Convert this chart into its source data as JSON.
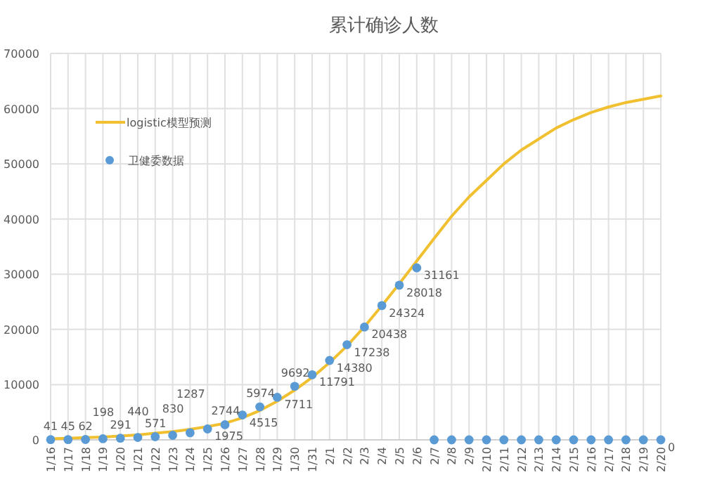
{
  "chart_data": {
    "type": "line",
    "title": "累计确诊人数",
    "categories": [
      "1/16",
      "1/17",
      "1/18",
      "1/19",
      "1/20",
      "1/21",
      "1/22",
      "1/23",
      "1/24",
      "1/25",
      "1/26",
      "1/27",
      "1/28",
      "1/29",
      "1/30",
      "1/31",
      "2/1",
      "2/2",
      "2/3",
      "2/4",
      "2/5",
      "2/6",
      "2/7",
      "2/8",
      "2/9",
      "2/10",
      "2/11",
      "2/12",
      "2/13",
      "2/14",
      "2/15",
      "2/16",
      "2/17",
      "2/18",
      "2/19",
      "2/20"
    ],
    "series": [
      {
        "name": "logistic模型预测",
        "color": "#f0c030",
        "marker": "none",
        "values": [
          200,
          300,
          400,
          500,
          700,
          900,
          1200,
          1500,
          1900,
          2400,
          3000,
          4000,
          5300,
          7000,
          9000,
          11300,
          14000,
          17000,
          20500,
          24300,
          28300,
          32400,
          36500,
          40500,
          44000,
          47000,
          50000,
          52500,
          54500,
          56500,
          58000,
          59300,
          60300,
          61100,
          61700,
          62300
        ]
      },
      {
        "name": "卫健委数据",
        "type": "scatter",
        "color": "#5b9bd5",
        "marker": "circle",
        "values": [
          41,
          45,
          62,
          198,
          291,
          440,
          571,
          830,
          1287,
          1975,
          2744,
          4515,
          5974,
          7711,
          9692,
          11791,
          14380,
          17238,
          20438,
          24324,
          28018,
          31161,
          0,
          0,
          0,
          0,
          0,
          0,
          0,
          0,
          0,
          0,
          0,
          0,
          0,
          0
        ],
        "value_labels": [
          "41",
          "45",
          "62",
          "198",
          "291",
          "440",
          "571",
          "830",
          "1287",
          "1975",
          "2744",
          "4515",
          "5974",
          "7711",
          "9692",
          "11791",
          "14380",
          "17238",
          "20438",
          "24324",
          "28018",
          "31161",
          null,
          null,
          null,
          null,
          null,
          null,
          null,
          null,
          null,
          null,
          null,
          null,
          null,
          "0"
        ]
      }
    ],
    "ylim": [
      0,
      70000
    ],
    "yticks": [
      0,
      10000,
      20000,
      30000,
      40000,
      50000,
      60000,
      70000
    ],
    "grid": true,
    "legend": "top left"
  }
}
